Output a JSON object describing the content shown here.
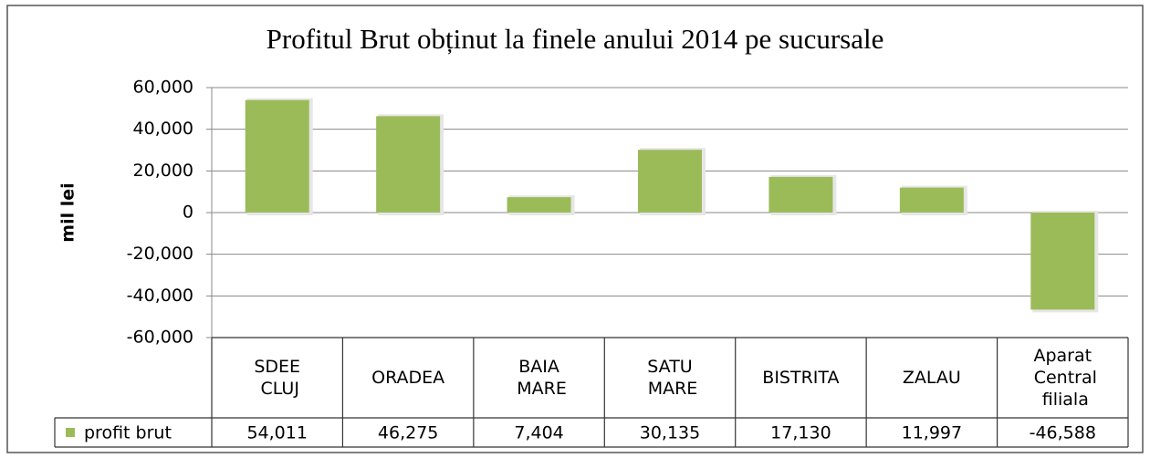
{
  "chart_data": {
    "type": "bar",
    "title": "Profitul Brut obținut la finele anului 2014 pe sucursale",
    "y_label": "mil lei",
    "categories": [
      "SDEE CLUJ",
      "ORADEA",
      "BAIA MARE",
      "SATU MARE",
      "BISTRITA",
      "ZALAU",
      "Aparat Central filiala"
    ],
    "series": [
      {
        "name": "profit brut",
        "color": "#9bbb59",
        "values": [
          54011,
          46275,
          7404,
          30135,
          17130,
          11997,
          -46588
        ],
        "value_labels": [
          "54,011",
          "46,275",
          "7,404",
          "30,135",
          "17,130",
          "11,997",
          "-46,588"
        ]
      }
    ],
    "ylim": [
      -60000,
      60000
    ],
    "yticks": [
      {
        "value": -60000,
        "label": "-60,000"
      },
      {
        "value": -40000,
        "label": "-40,000"
      },
      {
        "value": -20000,
        "label": "-20,000"
      },
      0,
      {
        "value": 20000,
        "label": "20,000"
      },
      {
        "value": 40000,
        "label": "40,000"
      },
      {
        "value": 60000,
        "label": "60,000"
      }
    ],
    "grid": true,
    "legend": "table"
  }
}
